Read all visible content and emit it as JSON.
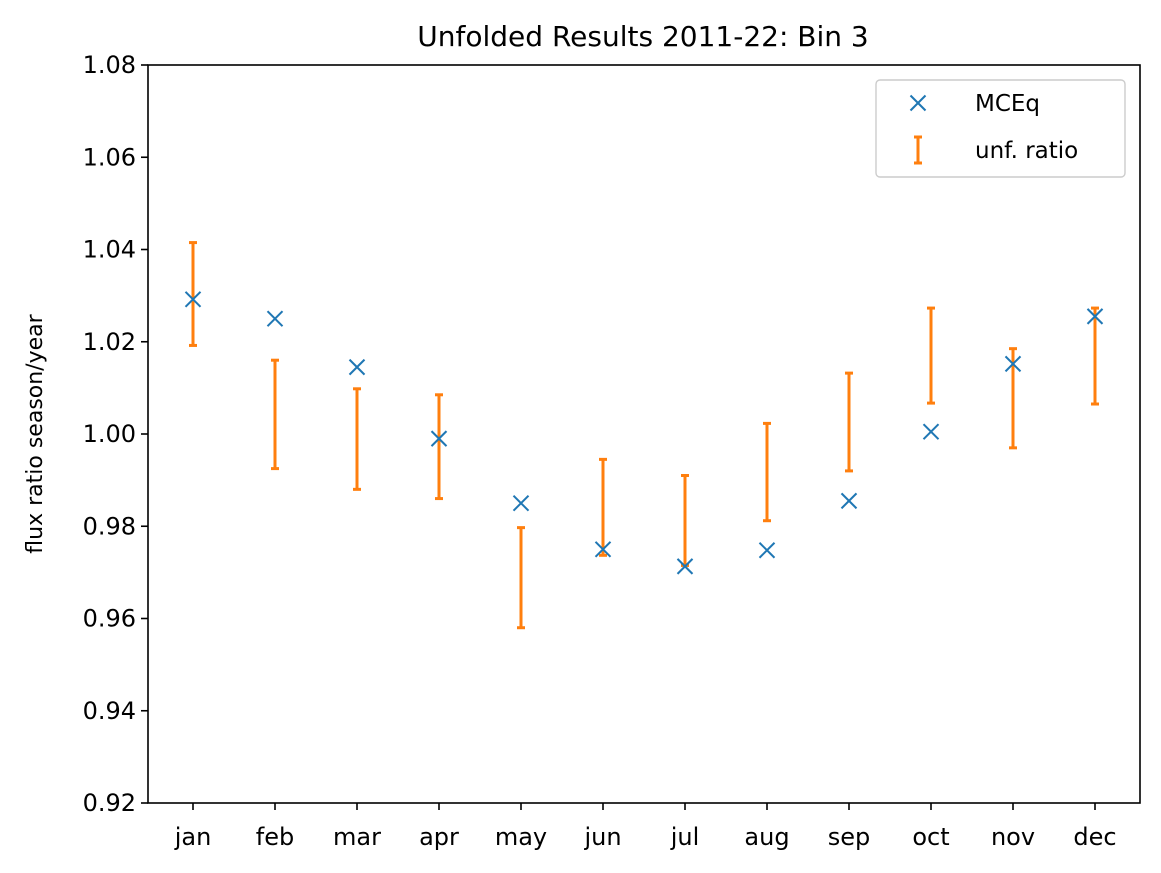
{
  "chart_data": {
    "type": "scatter",
    "title": "Unfolded Results 2011-22: Bin 3",
    "xlabel": "",
    "ylabel": "flux ratio season/year",
    "categories": [
      "jan",
      "feb",
      "mar",
      "apr",
      "may",
      "jun",
      "jul",
      "aug",
      "sep",
      "oct",
      "nov",
      "dec"
    ],
    "ylim": [
      0.92,
      1.08
    ],
    "yticks": [
      "0.92",
      "0.94",
      "0.96",
      "0.98",
      "1.00",
      "1.02",
      "1.04",
      "1.06",
      "1.08"
    ],
    "grid": false,
    "legend_position": "top-right",
    "series": [
      {
        "name": "MCEq",
        "marker": "x",
        "color": "#1f77b4",
        "values": [
          1.0292,
          1.025,
          1.0145,
          0.999,
          0.985,
          0.975,
          0.9713,
          0.9748,
          0.9855,
          1.0005,
          1.0152,
          1.0255
        ]
      },
      {
        "name": "unf. ratio",
        "marker": "errorbar",
        "color": "#ff7f0e",
        "lower": [
          1.0192,
          0.9925,
          0.988,
          0.986,
          0.958,
          0.9737,
          0.9715,
          0.9812,
          0.992,
          1.0067,
          0.997,
          1.0065
        ],
        "upper": [
          1.0415,
          1.016,
          1.0098,
          1.0085,
          0.9797,
          0.9945,
          0.991,
          1.0023,
          1.0132,
          1.0273,
          1.0185,
          1.0273
        ]
      }
    ]
  }
}
